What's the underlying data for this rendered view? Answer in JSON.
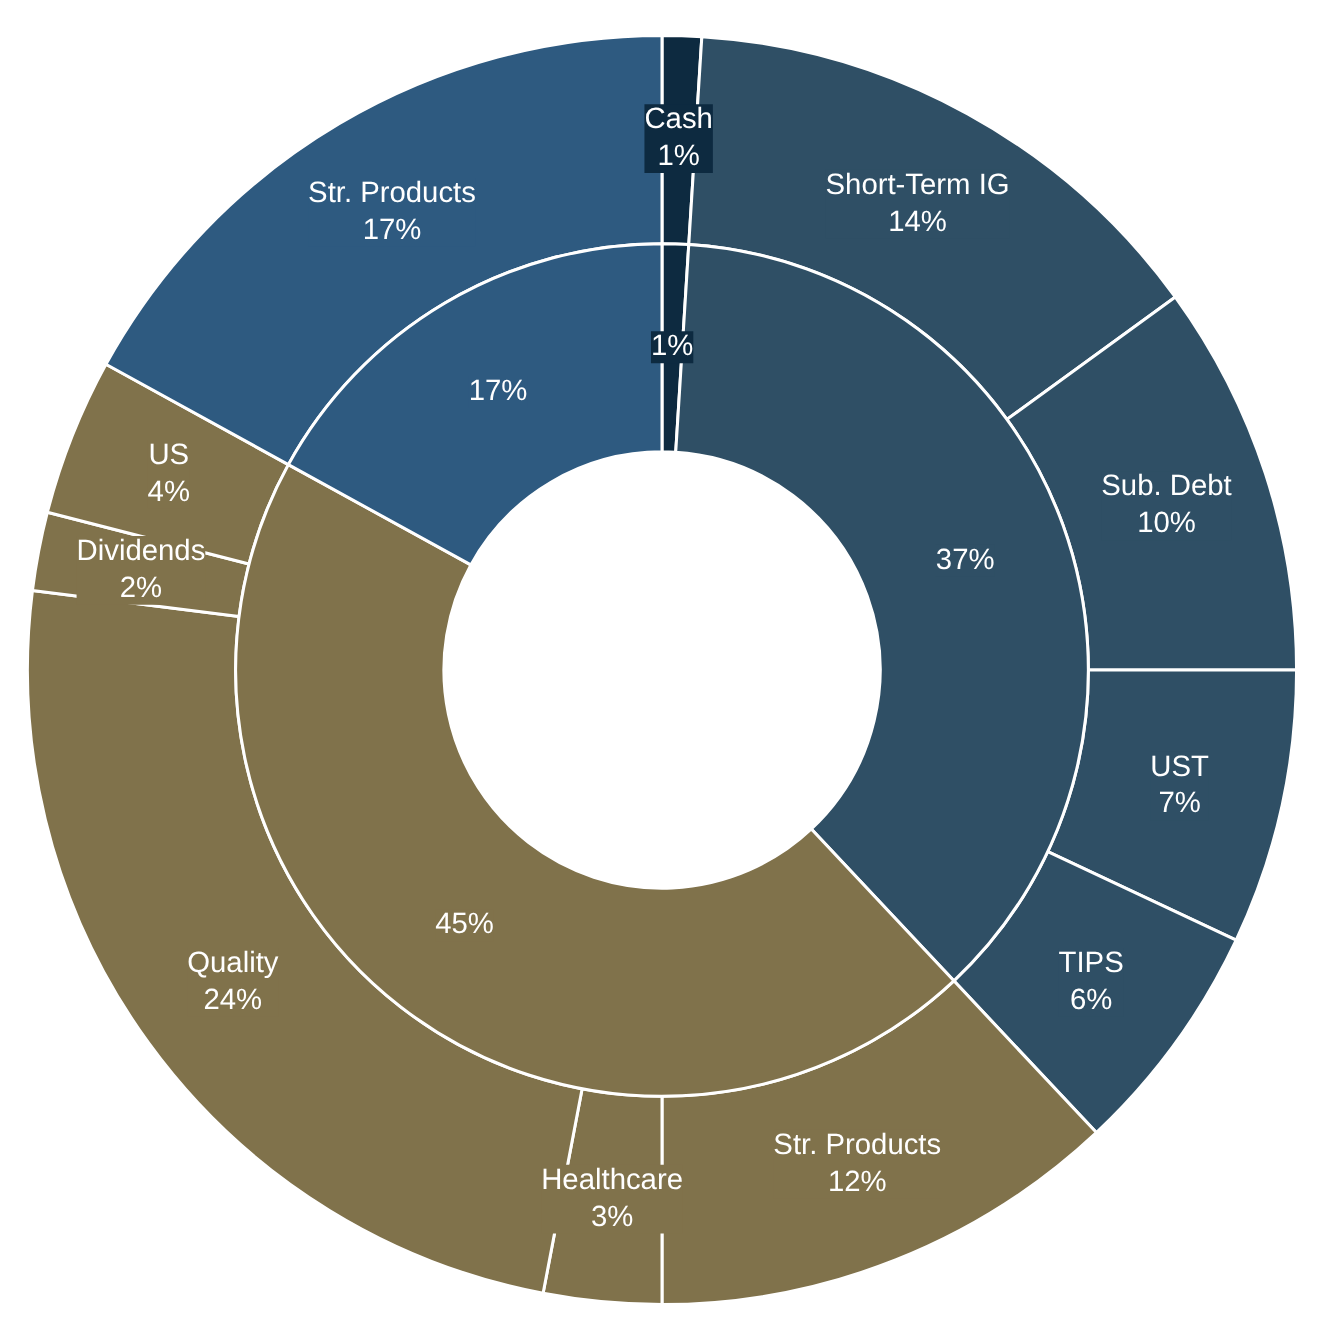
{
  "chart_data": {
    "type": "donut",
    "categories": [
      "Cash",
      "Short-Term IG",
      "Sub. Debt",
      "UST",
      "TIPS",
      "Str. Products",
      "Healthcare",
      "Quality",
      "Dividends",
      "US",
      "Str. Products"
    ],
    "series": [
      {
        "values": [
          1,
          14,
          10,
          7,
          6,
          12,
          3,
          24,
          2,
          4,
          17
        ],
        "colors": [
          "#0d2a40",
          "#2f4f65",
          "#2f4f65",
          "#2f4f65",
          "#2f4f65",
          "#80724b",
          "#80724b",
          "#80724b",
          "#80724b",
          "#80724b",
          "#2e5a80"
        ],
        "value_labels": [
          "1%",
          "14%",
          "10%",
          "7%",
          "6%",
          "12%",
          "3%",
          "24%",
          "2%",
          "4%",
          "17%"
        ]
      },
      {
        "values": [
          1,
          37,
          null,
          null,
          null,
          45,
          null,
          null,
          null,
          null,
          17
        ],
        "colors": [
          "#0d2a40",
          "#2f4f65",
          "#2f4f65",
          "#2f4f65",
          "#2f4f65",
          "#80724b",
          "#80724b",
          "#80724b",
          "#80724b",
          "#80724b",
          "#2e5a80"
        ],
        "value_labels": [
          "1%",
          "37%",
          null,
          null,
          null,
          "45%",
          null,
          null,
          null,
          null,
          "17%"
        ]
      }
    ]
  }
}
